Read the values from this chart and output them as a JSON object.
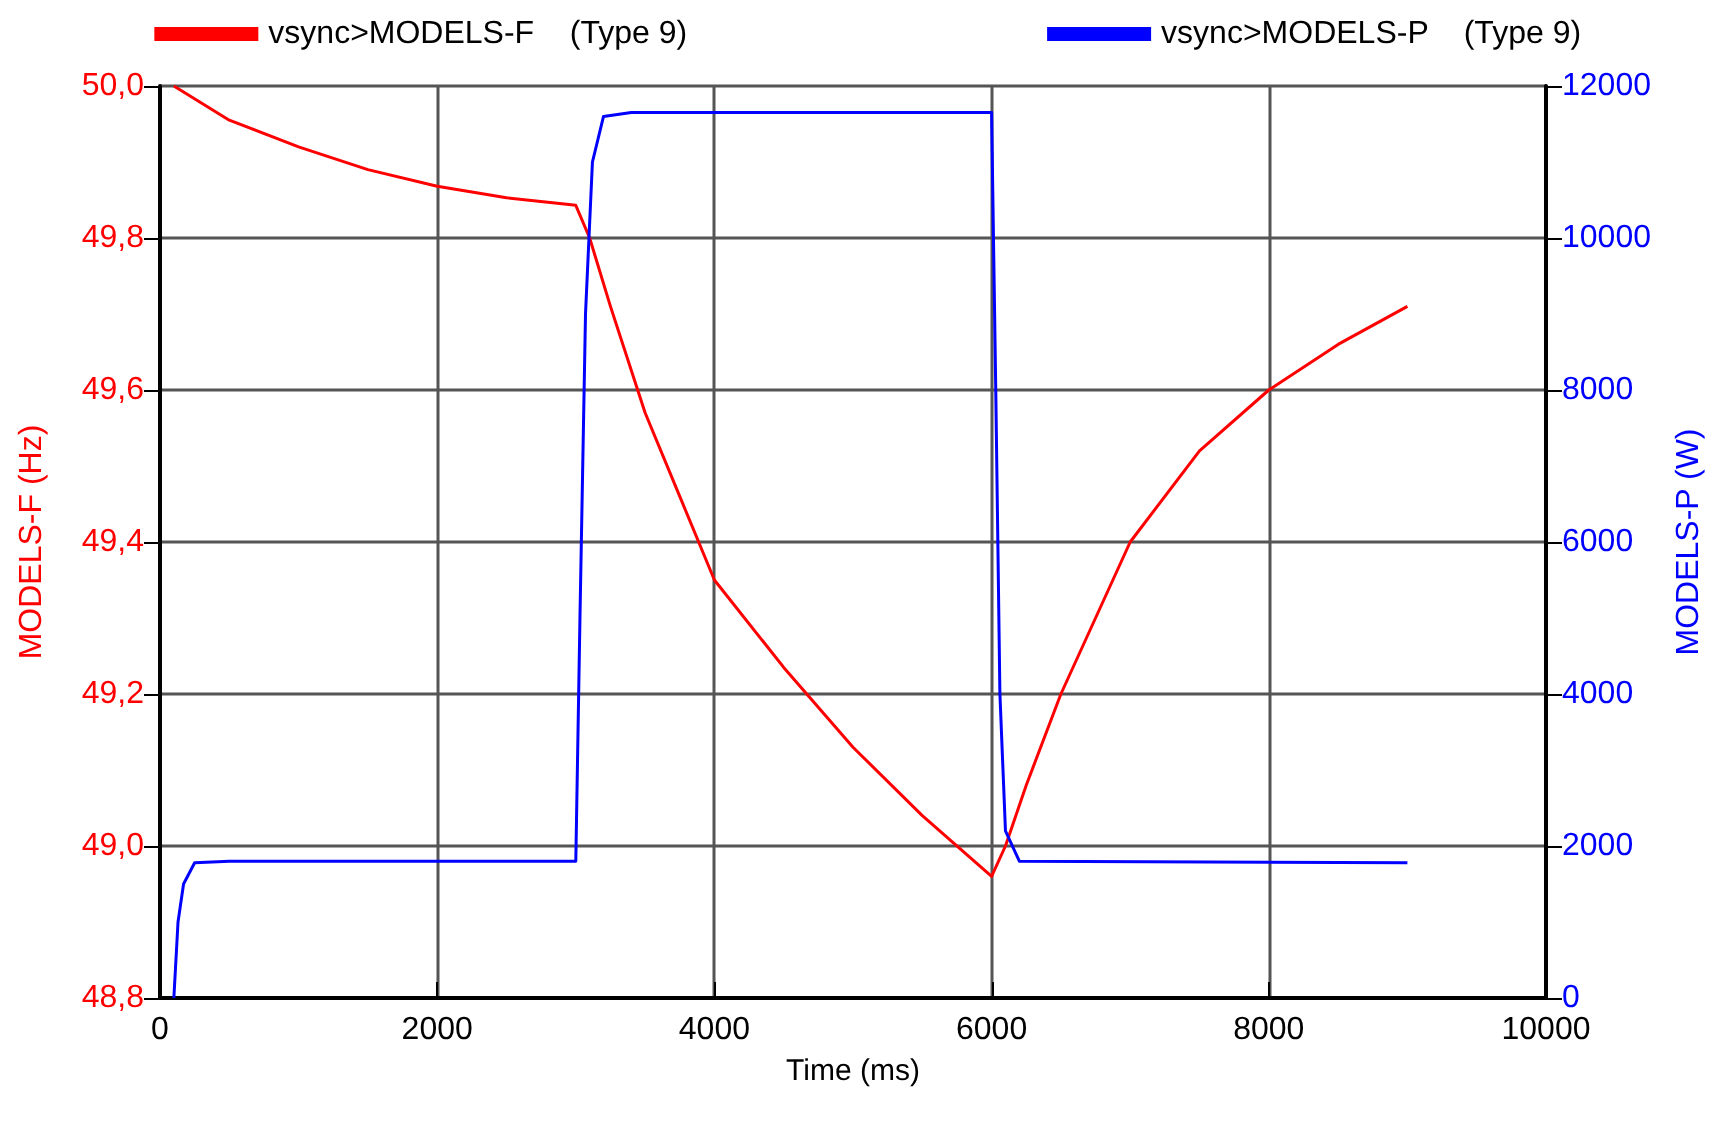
{
  "chart_data": {
    "type": "line",
    "xlabel": "Time (ms)",
    "ylabel": "MODELS-F (Hz)",
    "y2label": "MODELS-P (W)",
    "xlim": [
      0,
      10000
    ],
    "xticks": [
      0,
      2000,
      4000,
      6000,
      8000,
      10000
    ],
    "ylim": [
      48.8,
      50.0
    ],
    "yticks": [
      {
        "value": 48.8,
        "label": "48,8"
      },
      {
        "value": 49.0,
        "label": "49,0"
      },
      {
        "value": 49.2,
        "label": "49,2"
      },
      {
        "value": 49.4,
        "label": "49,4"
      },
      {
        "value": 49.6,
        "label": "49,6"
      },
      {
        "value": 49.8,
        "label": "49,8"
      },
      {
        "value": 50.0,
        "label": "50,0"
      }
    ],
    "y2lim": [
      0,
      12000
    ],
    "y2ticks": [
      0,
      2000,
      4000,
      6000,
      8000,
      10000,
      12000
    ],
    "grid": true,
    "legend": "top",
    "marker": "none",
    "line_style": "solid",
    "series": [
      {
        "name": "vsync>MODELS-F    (Type 9)",
        "color": "#ff0000",
        "x": [
          100,
          500,
          1000,
          1500,
          2000,
          2500,
          2900,
          3000,
          3100,
          3250,
          3500,
          3750,
          4000,
          4500,
          5000,
          5500,
          6000,
          6100,
          6250,
          6500,
          7000,
          7500,
          8000,
          8500,
          9000
        ],
        "values": [
          50.0,
          49.955,
          49.92,
          49.89,
          49.868,
          49.853,
          49.845,
          49.843,
          49.8,
          49.71,
          49.57,
          49.46,
          49.35,
          49.235,
          49.13,
          49.04,
          48.96,
          49.0,
          49.08,
          49.2,
          49.4,
          49.52,
          49.6,
          49.66,
          49.71
        ]
      },
      {
        "name": "vsync>MODELS-P    (Type 9)",
        "color": "#0000ff",
        "axis": "y2",
        "x": [
          100,
          130,
          170,
          250,
          500,
          3000,
          3030,
          3070,
          3120,
          3200,
          3400,
          6000,
          6030,
          6060,
          6100,
          6200,
          9000
        ],
        "values": [
          0,
          1000,
          1500,
          1780,
          1800,
          1800,
          5000,
          9000,
          11000,
          11600,
          11650,
          11650,
          8000,
          4000,
          2200,
          1800,
          1780
        ]
      }
    ]
  }
}
